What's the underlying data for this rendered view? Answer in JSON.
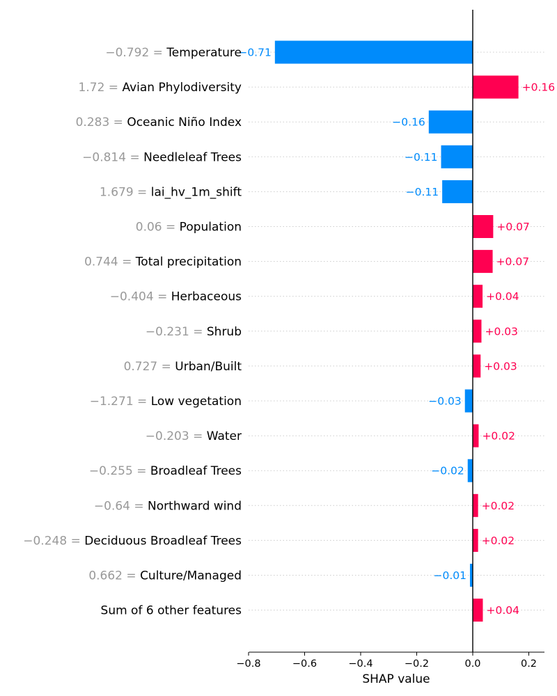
{
  "chart_data": {
    "type": "bar",
    "orientation": "horizontal",
    "plot_style": "shap-bar",
    "xlabel": "SHAP value",
    "xlim": [
      -0.8,
      0.25
    ],
    "xticks": [
      -0.8,
      -0.6,
      -0.4,
      -0.2,
      0.0,
      0.2
    ],
    "xtick_labels": [
      "−0.8",
      "−0.6",
      "−0.4",
      "−0.2",
      "0.0",
      "0.2"
    ],
    "grid": "horizontal dotted guides per row",
    "colors": {
      "positive": "#ff0051",
      "negative": "#008bfb",
      "feature_value": "#999999",
      "zero_line": "#000000",
      "guide": "#cccccc"
    },
    "features": [
      {
        "value_text": "−0.792 = ",
        "name": "Temperature",
        "shap": -0.706,
        "shap_label": "−0.71"
      },
      {
        "value_text": "1.72 = ",
        "name": "Avian Phylodiversity",
        "shap": 0.163,
        "shap_label": "+0.16"
      },
      {
        "value_text": "0.283 = ",
        "name": "Oceanic Niño Index",
        "shap": -0.157,
        "shap_label": "−0.16"
      },
      {
        "value_text": "−0.814 = ",
        "name": "Needleleaf Trees",
        "shap": -0.113,
        "shap_label": "−0.11"
      },
      {
        "value_text": "1.679 = ",
        "name": "lai_hv_1m_shift",
        "shap": -0.109,
        "shap_label": "−0.11"
      },
      {
        "value_text": "0.06 = ",
        "name": "Population",
        "shap": 0.073,
        "shap_label": "+0.07"
      },
      {
        "value_text": "0.744 = ",
        "name": "Total precipitation",
        "shap": 0.071,
        "shap_label": "+0.07"
      },
      {
        "value_text": "−0.404 = ",
        "name": "Herbaceous",
        "shap": 0.035,
        "shap_label": "+0.04"
      },
      {
        "value_text": "−0.231 = ",
        "name": "Shrub",
        "shap": 0.031,
        "shap_label": "+0.03"
      },
      {
        "value_text": "0.727 = ",
        "name": "Urban/Built",
        "shap": 0.028,
        "shap_label": "+0.03"
      },
      {
        "value_text": "−1.271 = ",
        "name": "Low vegetation",
        "shap": -0.028,
        "shap_label": "−0.03"
      },
      {
        "value_text": "−0.203 = ",
        "name": "Water",
        "shap": 0.021,
        "shap_label": "+0.02"
      },
      {
        "value_text": "−0.255 = ",
        "name": "Broadleaf Trees",
        "shap": -0.018,
        "shap_label": "−0.02"
      },
      {
        "value_text": "−0.64 = ",
        "name": "Northward wind",
        "shap": 0.019,
        "shap_label": "+0.02"
      },
      {
        "value_text": "−0.248 = ",
        "name": "Deciduous Broadleaf Trees",
        "shap": 0.019,
        "shap_label": "+0.02"
      },
      {
        "value_text": "0.662 = ",
        "name": "Culture/Managed",
        "shap": -0.01,
        "shap_label": "−0.01"
      },
      {
        "value_text": "",
        "name": "Sum of 6 other features",
        "shap": 0.036,
        "shap_label": "+0.04"
      }
    ]
  }
}
